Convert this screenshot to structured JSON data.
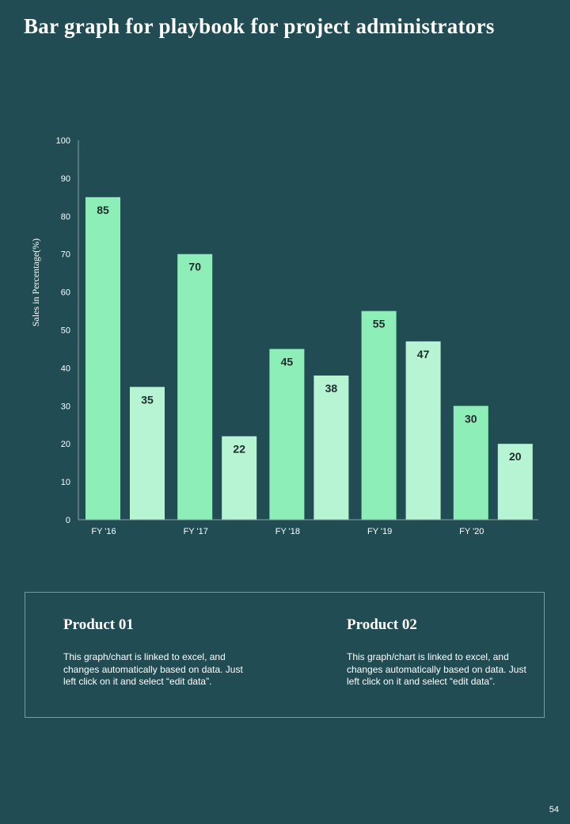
{
  "title": "Bar graph for playbook  for project administrators",
  "chart_data": {
    "type": "bar",
    "categories": [
      "FY '16",
      "FY '17",
      "FY '18",
      "FY '19",
      "FY '20"
    ],
    "series": [
      {
        "name": "Product 01",
        "values": [
          85,
          70,
          45,
          55,
          30
        ],
        "color": "#8eeeb7"
      },
      {
        "name": "Product 02",
        "values": [
          35,
          22,
          38,
          47,
          20
        ],
        "color": "#b6f4d3"
      }
    ],
    "ylabel": "Sales in Percentage(%)",
    "xlabel": "",
    "ylim": [
      0,
      100
    ],
    "yticks": [
      0,
      10,
      20,
      30,
      40,
      50,
      60,
      70,
      80,
      90,
      100
    ],
    "grid": false
  },
  "legend": {
    "products": [
      {
        "name": "Product 01",
        "description": "This graph/chart is linked to excel, and changes automatically based on data. Just left click on it and select “edit data”."
      },
      {
        "name": "Product 02",
        "description": "This graph/chart is linked to excel, and changes automatically based on data. Just left click on it and select “edit data”."
      }
    ]
  },
  "page_number": "54",
  "colors": {
    "background": "#214c54",
    "axis": "#8aa5a6",
    "label_text": "#1e2b2b"
  }
}
